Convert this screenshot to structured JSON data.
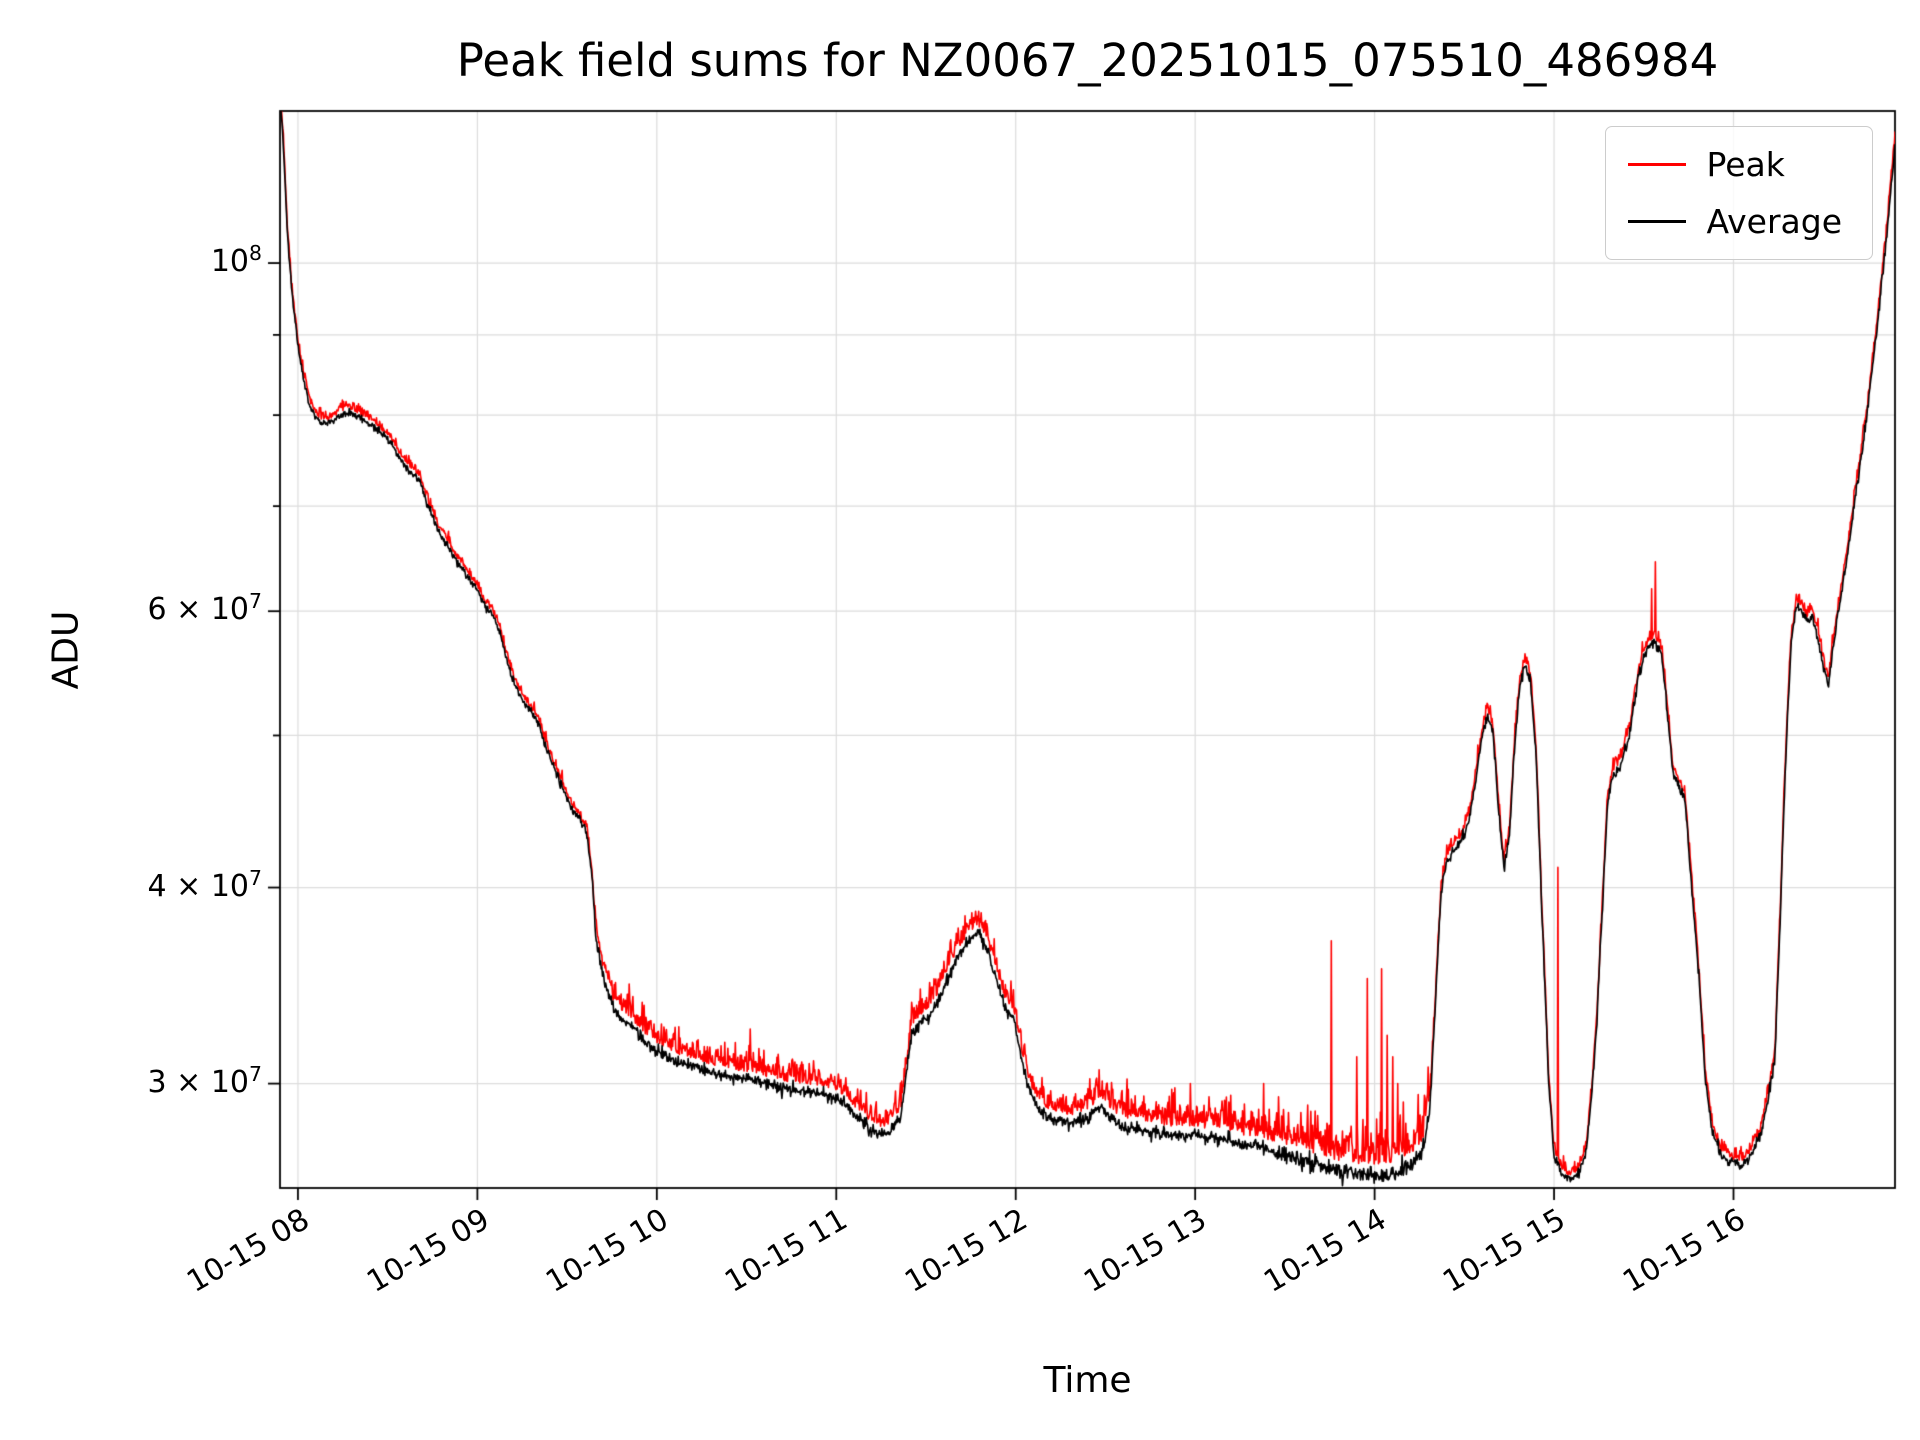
{
  "chart_data": {
    "type": "line",
    "title": "Peak field sums for NZ0067_20251015_075510_486984",
    "xlabel": "Time",
    "ylabel": "ADU",
    "x_axis_unit": "hours of 2025-10-15",
    "xlim": [
      7.9,
      16.9
    ],
    "ylim": [
      25740000,
      125000000
    ],
    "ylim_log10": [
      7.4106,
      8.0969
    ],
    "grid": true,
    "grid_color": "#dcdcdc",
    "x_ticks": [
      {
        "value": 8,
        "label": "10-15 08"
      },
      {
        "value": 9,
        "label": "10-15 09"
      },
      {
        "value": 10,
        "label": "10-15 10"
      },
      {
        "value": 11,
        "label": "10-15 11"
      },
      {
        "value": 12,
        "label": "10-15 12"
      },
      {
        "value": 13,
        "label": "10-15 13"
      },
      {
        "value": 14,
        "label": "10-15 14"
      },
      {
        "value": 15,
        "label": "10-15 15"
      },
      {
        "value": 16,
        "label": "10-15 16"
      }
    ],
    "y_ticks_major": [
      {
        "value": 100000000,
        "base": "10",
        "exp": "8"
      },
      {
        "value": 60000000,
        "base": "6 × 10",
        "exp": "7"
      },
      {
        "value": 40000000,
        "base": "4 × 10",
        "exp": "7"
      },
      {
        "value": 30000000,
        "base": "3 × 10",
        "exp": "7"
      }
    ],
    "y_ticks_minor": [
      50000000,
      70000000,
      80000000,
      90000000
    ],
    "y_grid": [
      30000000,
      40000000,
      50000000,
      60000000,
      70000000,
      80000000,
      90000000,
      100000000
    ],
    "legend": {
      "position": "upper right",
      "entries": [
        {
          "label": "Peak",
          "color": "#ff0000"
        },
        {
          "label": "Average",
          "color": "#000000"
        }
      ]
    },
    "samples": 2600,
    "noise_zones": [
      {
        "range": [
          7.9,
          9.65
        ],
        "avg": 0.0028,
        "peak_off": 0.005,
        "peak_amp": 0.007
      },
      {
        "range": [
          9.65,
          12.35
        ],
        "avg": 0.0045,
        "peak_off": 0.011,
        "peak_amp": 0.016
      },
      {
        "range": [
          12.35,
          13.45
        ],
        "avg": 0.005,
        "peak_off": 0.013,
        "peak_amp": 0.022
      },
      {
        "range": [
          13.45,
          14.32
        ],
        "avg": 0.0065,
        "peak_off": 0.015,
        "peak_amp": 0.03
      },
      {
        "range": [
          14.32,
          16.95
        ],
        "avg": 0.004,
        "peak_off": 0.006,
        "peak_amp": 0.009
      }
    ],
    "series": [
      {
        "name": "Peak",
        "color": "#ff0000",
        "spikes_e7": [
          [
            10.52,
            3.25
          ],
          [
            12.62,
            3.02
          ],
          [
            12.88,
            2.96
          ],
          [
            13.38,
            3.0
          ],
          [
            13.76,
            3.7
          ],
          [
            13.9,
            3.12
          ],
          [
            13.96,
            3.5
          ],
          [
            14.04,
            3.55
          ],
          [
            14.07,
            3.22
          ],
          [
            14.1,
            3.12
          ],
          [
            14.13,
            3.0
          ],
          [
            14.16,
            2.92
          ],
          [
            15.02,
            4.12
          ],
          [
            15.545,
            6.2
          ],
          [
            15.565,
            6.45
          ]
        ]
      },
      {
        "name": "Average",
        "color": "#000000",
        "keypoints_e7": [
          [
            7.905,
            12.6
          ],
          [
            7.92,
            11.8
          ],
          [
            7.94,
            10.5
          ],
          [
            7.965,
            9.6
          ],
          [
            8.0,
            8.85
          ],
          [
            8.035,
            8.4
          ],
          [
            8.07,
            8.08
          ],
          [
            8.12,
            7.92
          ],
          [
            8.17,
            7.9
          ],
          [
            8.22,
            7.97
          ],
          [
            8.27,
            8.04
          ],
          [
            8.32,
            7.99
          ],
          [
            8.38,
            7.93
          ],
          [
            8.45,
            7.82
          ],
          [
            8.52,
            7.67
          ],
          [
            8.58,
            7.47
          ],
          [
            8.63,
            7.36
          ],
          [
            8.68,
            7.27
          ],
          [
            8.72,
            7.02
          ],
          [
            8.78,
            6.76
          ],
          [
            8.83,
            6.62
          ],
          [
            8.88,
            6.47
          ],
          [
            8.95,
            6.3
          ],
          [
            9.0,
            6.18
          ],
          [
            9.04,
            6.05
          ],
          [
            9.08,
            5.97
          ],
          [
            9.12,
            5.85
          ],
          [
            9.16,
            5.6
          ],
          [
            9.2,
            5.42
          ],
          [
            9.25,
            5.27
          ],
          [
            9.3,
            5.17
          ],
          [
            9.34,
            5.1
          ],
          [
            9.37,
            4.95
          ],
          [
            9.41,
            4.82
          ],
          [
            9.45,
            4.7
          ],
          [
            9.49,
            4.58
          ],
          [
            9.53,
            4.48
          ],
          [
            9.57,
            4.42
          ],
          [
            9.61,
            4.33
          ],
          [
            9.64,
            4.05
          ],
          [
            9.66,
            3.7
          ],
          [
            9.69,
            3.55
          ],
          [
            9.72,
            3.45
          ],
          [
            9.76,
            3.34
          ],
          [
            9.8,
            3.3
          ],
          [
            9.85,
            3.27
          ],
          [
            9.9,
            3.22
          ],
          [
            9.95,
            3.18
          ],
          [
            10.0,
            3.15
          ],
          [
            10.1,
            3.1
          ],
          [
            10.2,
            3.08
          ],
          [
            10.3,
            3.05
          ],
          [
            10.4,
            3.03
          ],
          [
            10.5,
            3.02
          ],
          [
            10.6,
            3.0
          ],
          [
            10.7,
            2.98
          ],
          [
            10.8,
            2.97
          ],
          [
            10.9,
            2.96
          ],
          [
            11.0,
            2.94
          ],
          [
            11.05,
            2.91
          ],
          [
            11.1,
            2.87
          ],
          [
            11.15,
            2.83
          ],
          [
            11.2,
            2.8
          ],
          [
            11.25,
            2.78
          ],
          [
            11.3,
            2.8
          ],
          [
            11.36,
            2.86
          ],
          [
            11.42,
            3.22
          ],
          [
            11.48,
            3.28
          ],
          [
            11.54,
            3.34
          ],
          [
            11.6,
            3.45
          ],
          [
            11.68,
            3.62
          ],
          [
            11.74,
            3.7
          ],
          [
            11.79,
            3.74
          ],
          [
            11.84,
            3.66
          ],
          [
            11.89,
            3.5
          ],
          [
            11.94,
            3.36
          ],
          [
            11.99,
            3.3
          ],
          [
            12.04,
            3.08
          ],
          [
            12.09,
            2.94
          ],
          [
            12.14,
            2.88
          ],
          [
            12.2,
            2.85
          ],
          [
            12.3,
            2.83
          ],
          [
            12.4,
            2.85
          ],
          [
            12.47,
            2.9
          ],
          [
            12.52,
            2.86
          ],
          [
            12.6,
            2.81
          ],
          [
            12.7,
            2.8
          ],
          [
            12.8,
            2.79
          ],
          [
            12.9,
            2.78
          ],
          [
            13.0,
            2.78
          ],
          [
            13.1,
            2.77
          ],
          [
            13.2,
            2.76
          ],
          [
            13.3,
            2.74
          ],
          [
            13.4,
            2.73
          ],
          [
            13.5,
            2.7
          ],
          [
            13.6,
            2.68
          ],
          [
            13.7,
            2.66
          ],
          [
            13.8,
            2.64
          ],
          [
            13.9,
            2.63
          ],
          [
            14.0,
            2.62
          ],
          [
            14.1,
            2.63
          ],
          [
            14.2,
            2.66
          ],
          [
            14.27,
            2.72
          ],
          [
            14.31,
            2.9
          ],
          [
            14.34,
            3.4
          ],
          [
            14.37,
            3.95
          ],
          [
            14.4,
            4.15
          ],
          [
            14.44,
            4.22
          ],
          [
            14.48,
            4.28
          ],
          [
            14.52,
            4.38
          ],
          [
            14.56,
            4.65
          ],
          [
            14.6,
            5.0
          ],
          [
            14.63,
            5.15
          ],
          [
            14.66,
            5.02
          ],
          [
            14.69,
            4.5
          ],
          [
            14.72,
            4.12
          ],
          [
            14.75,
            4.3
          ],
          [
            14.78,
            4.9
          ],
          [
            14.81,
            5.4
          ],
          [
            14.84,
            5.55
          ],
          [
            14.87,
            5.4
          ],
          [
            14.9,
            4.85
          ],
          [
            14.93,
            3.9
          ],
          [
            14.97,
            3.0
          ],
          [
            15.0,
            2.7
          ],
          [
            15.04,
            2.63
          ],
          [
            15.09,
            2.6
          ],
          [
            15.14,
            2.63
          ],
          [
            15.18,
            2.72
          ],
          [
            15.21,
            2.95
          ],
          [
            15.24,
            3.3
          ],
          [
            15.27,
            3.9
          ],
          [
            15.3,
            4.55
          ],
          [
            15.33,
            4.72
          ],
          [
            15.37,
            4.78
          ],
          [
            15.42,
            5.0
          ],
          [
            15.47,
            5.45
          ],
          [
            15.52,
            5.68
          ],
          [
            15.56,
            5.75
          ],
          [
            15.6,
            5.62
          ],
          [
            15.63,
            5.2
          ],
          [
            15.66,
            4.75
          ],
          [
            15.7,
            4.62
          ],
          [
            15.73,
            4.55
          ],
          [
            15.76,
            4.1
          ],
          [
            15.8,
            3.6
          ],
          [
            15.84,
            3.05
          ],
          [
            15.88,
            2.8
          ],
          [
            15.93,
            2.7
          ],
          [
            15.99,
            2.67
          ],
          [
            16.05,
            2.66
          ],
          [
            16.1,
            2.7
          ],
          [
            16.15,
            2.78
          ],
          [
            16.19,
            2.92
          ],
          [
            16.23,
            3.1
          ],
          [
            16.26,
            3.8
          ],
          [
            16.29,
            4.8
          ],
          [
            16.32,
            5.7
          ],
          [
            16.35,
            6.05
          ],
          [
            16.38,
            6.0
          ],
          [
            16.41,
            5.9
          ],
          [
            16.44,
            5.95
          ],
          [
            16.47,
            5.78
          ],
          [
            16.5,
            5.52
          ],
          [
            16.53,
            5.38
          ],
          [
            16.56,
            5.75
          ],
          [
            16.6,
            6.15
          ],
          [
            16.65,
            6.7
          ],
          [
            16.7,
            7.35
          ],
          [
            16.75,
            8.1
          ],
          [
            16.8,
            9.1
          ],
          [
            16.85,
            10.3
          ],
          [
            16.9,
            11.9
          ]
        ]
      }
    ]
  }
}
